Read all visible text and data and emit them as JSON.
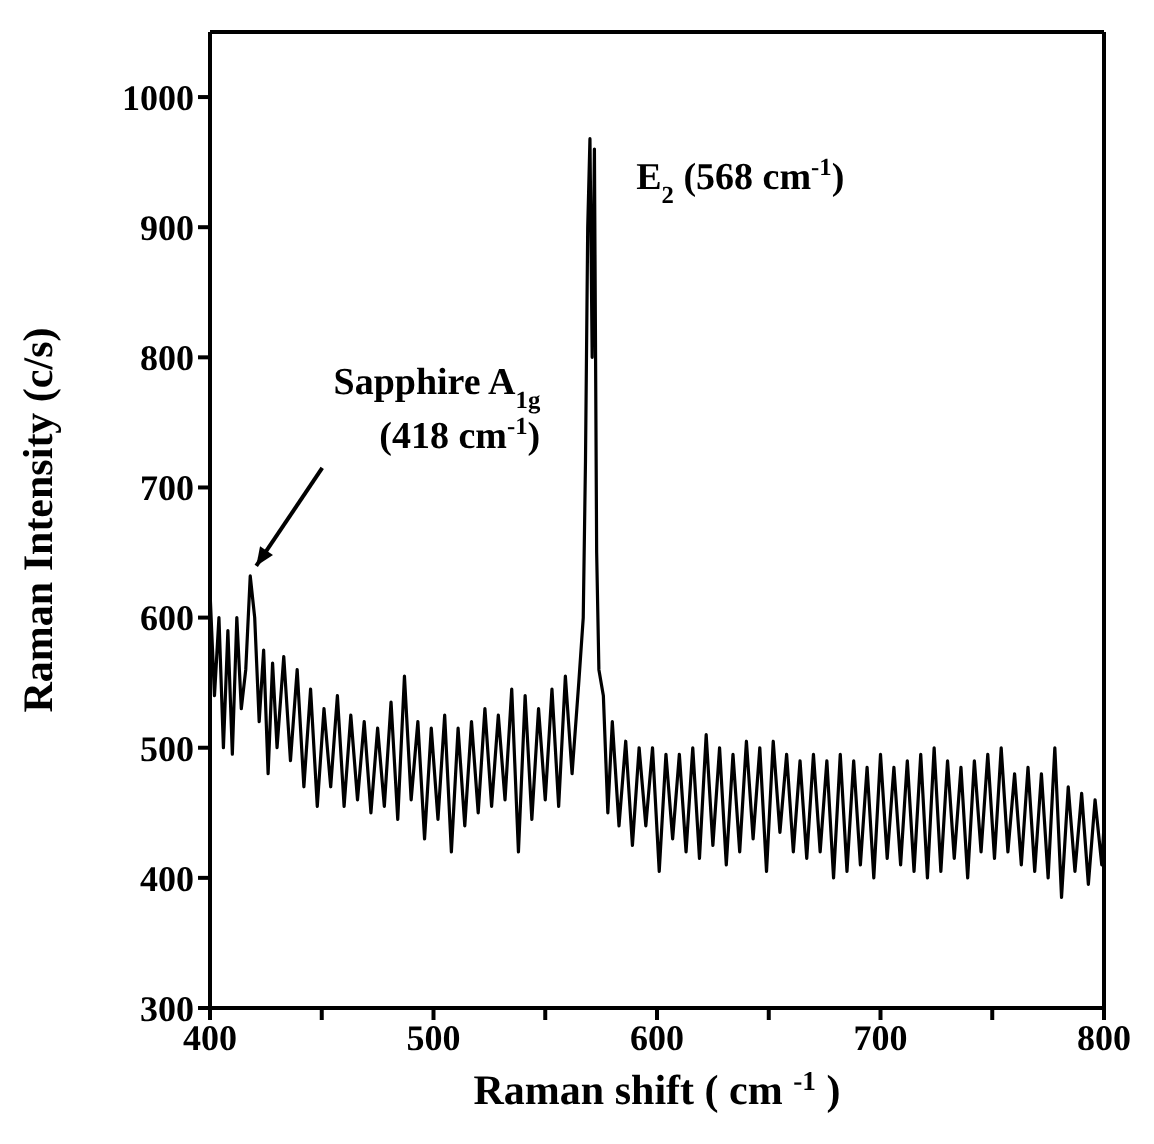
{
  "chart_data": {
    "type": "line",
    "xlabel": "Raman shift ( cm $^{-1}$ )",
    "ylabel": "Raman Intensity (c/s)",
    "xlim": [
      400,
      800
    ],
    "xticks": [
      400,
      {
        "value": 450,
        "label": null
      },
      500,
      {
        "value": 550,
        "label": null
      },
      600,
      {
        "value": 650,
        "label": null
      },
      700,
      {
        "value": 750,
        "label": null
      },
      800
    ],
    "ylim": [
      300,
      1050
    ],
    "yticks": [
      300,
      400,
      500,
      600,
      700,
      800,
      900,
      1000
    ],
    "grid": false,
    "legend": false,
    "marker": "none",
    "line_style": "solid",
    "annotations": [
      {
        "text": "Sapphire A$_{1g}$\n(418 cm$^{-1}$)",
        "x": 418,
        "y": 632
      },
      {
        "text": "E$_{2}$ (568 cm$^{-1}$)",
        "x": 571,
        "y": 968
      }
    ],
    "series": [
      {
        "color": "#000000",
        "x": [
          400,
          402,
          404,
          406,
          408,
          410,
          412,
          414,
          416,
          418,
          420,
          422,
          424,
          426,
          428,
          430,
          433,
          436,
          439,
          442,
          445,
          448,
          451,
          454,
          457,
          460,
          463,
          466,
          469,
          472,
          475,
          478,
          481,
          484,
          487,
          490,
          493,
          496,
          499,
          502,
          505,
          508,
          511,
          514,
          517,
          520,
          523,
          526,
          529,
          532,
          535,
          538,
          541,
          544,
          547,
          550,
          553,
          556,
          559,
          562,
          565,
          567,
          568,
          569,
          570,
          571,
          572,
          573,
          574,
          576,
          578,
          580,
          583,
          586,
          589,
          592,
          595,
          598,
          601,
          604,
          607,
          610,
          613,
          616,
          619,
          622,
          625,
          628,
          631,
          634,
          637,
          640,
          643,
          646,
          649,
          652,
          655,
          658,
          661,
          664,
          667,
          670,
          673,
          676,
          679,
          682,
          685,
          688,
          691,
          694,
          697,
          700,
          703,
          706,
          709,
          712,
          715,
          718,
          721,
          724,
          727,
          730,
          733,
          736,
          739,
          742,
          745,
          748,
          751,
          754,
          757,
          760,
          763,
          766,
          769,
          772,
          775,
          778,
          781,
          784,
          787,
          790,
          793,
          796,
          799,
          800
        ],
        "values": [
          620,
          540,
          600,
          500,
          590,
          495,
          600,
          530,
          560,
          632,
          600,
          520,
          575,
          480,
          565,
          500,
          570,
          490,
          560,
          470,
          545,
          455,
          530,
          470,
          540,
          455,
          525,
          460,
          520,
          450,
          515,
          455,
          535,
          445,
          555,
          460,
          520,
          430,
          515,
          445,
          525,
          420,
          515,
          440,
          520,
          450,
          530,
          455,
          525,
          460,
          545,
          420,
          540,
          445,
          530,
          460,
          545,
          455,
          555,
          480,
          550,
          600,
          720,
          900,
          968,
          800,
          960,
          650,
          560,
          540,
          450,
          520,
          440,
          505,
          425,
          500,
          440,
          500,
          405,
          495,
          430,
          495,
          420,
          500,
          415,
          510,
          425,
          500,
          410,
          495,
          420,
          505,
          430,
          500,
          405,
          505,
          435,
          495,
          420,
          490,
          415,
          495,
          420,
          490,
          400,
          495,
          405,
          490,
          410,
          485,
          400,
          495,
          415,
          485,
          410,
          490,
          405,
          495,
          400,
          500,
          405,
          490,
          415,
          485,
          400,
          490,
          420,
          495,
          415,
          500,
          420,
          480,
          410,
          485,
          405,
          480,
          400,
          500,
          385,
          470,
          405,
          465,
          395,
          460,
          410,
          440
        ]
      }
    ]
  }
}
